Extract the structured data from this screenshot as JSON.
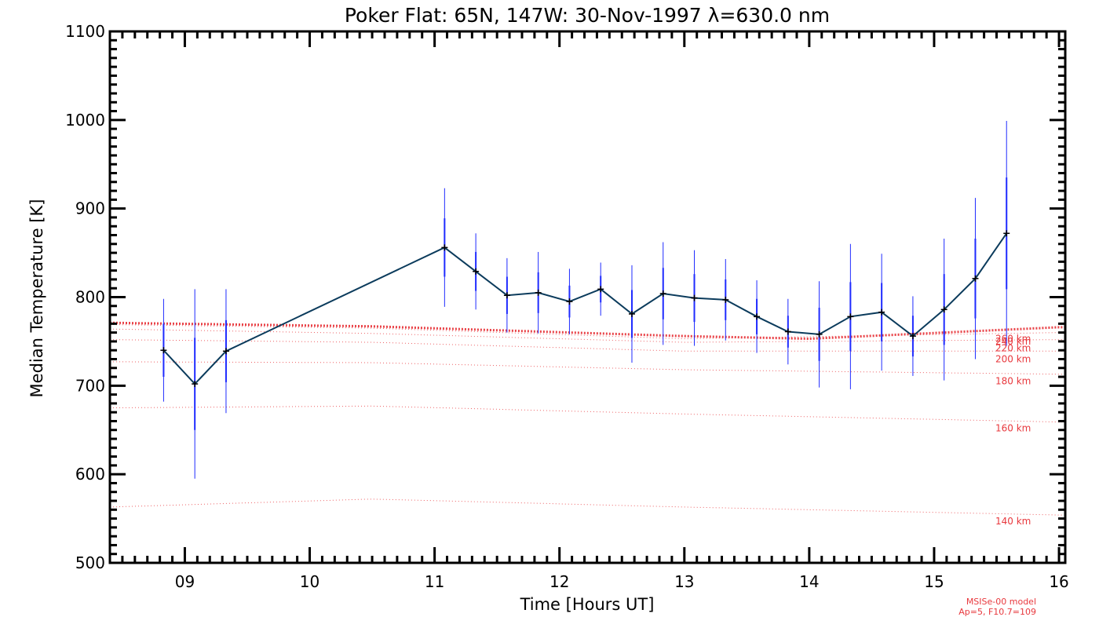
{
  "chart_data": {
    "type": "line",
    "title": "Poker Flat: 65N, 147W: 30-Nov-1997 λ=630.0 nm",
    "xlabel": "Time [Hours UT]",
    "ylabel": "Median Temperature [K]",
    "xlim": [
      8.4,
      16.05
    ],
    "ylim": [
      500,
      1100
    ],
    "xticks": [
      9,
      10,
      11,
      12,
      13,
      14,
      15,
      16
    ],
    "xtick_labels": [
      "09",
      "10",
      "11",
      "12",
      "13",
      "14",
      "15",
      "16"
    ],
    "yticks": [
      500,
      600,
      700,
      800,
      900,
      1000,
      1100
    ],
    "ytick_labels": [
      "500",
      "600",
      "700",
      "800",
      "900",
      "1000",
      "1100"
    ],
    "grid": false,
    "series": [
      {
        "color": "#0b3b5c",
        "error_color": "#1f2bff",
        "x": [
          8.83,
          9.08,
          9.33,
          11.08,
          11.33,
          11.58,
          11.83,
          12.08,
          12.33,
          12.58,
          12.83,
          13.08,
          13.33,
          13.58,
          13.83,
          14.08,
          14.33,
          14.58,
          14.83,
          15.08,
          15.33,
          15.58
        ],
        "y": [
          740,
          702,
          739,
          856,
          829,
          802,
          805,
          795,
          809,
          781,
          804,
          799,
          797,
          778,
          761,
          758,
          778,
          783,
          756,
          786,
          821,
          872
        ],
        "err_inner": [
          30,
          52,
          35,
          33,
          22,
          21,
          23,
          18,
          15,
          27,
          29,
          27,
          23,
          20,
          18,
          30,
          39,
          33,
          23,
          40,
          45,
          63
        ],
        "err_outer": [
          58,
          107,
          70,
          67,
          43,
          42,
          46,
          37,
          30,
          55,
          58,
          54,
          46,
          41,
          37,
          60,
          82,
          66,
          45,
          80,
          91,
          127
        ]
      }
    ],
    "model_curves": [
      {
        "label": "140 km",
        "x": [
          8.4,
          10.5,
          13.0,
          16.0
        ],
        "y": [
          563,
          572,
          563,
          554
        ]
      },
      {
        "label": "160 km",
        "x": [
          8.4,
          10.5,
          13.0,
          16.0
        ],
        "y": [
          675,
          677,
          668,
          659
        ]
      },
      {
        "label": "180 km",
        "x": [
          8.4,
          10.5,
          13.0,
          16.0
        ],
        "y": [
          727,
          726,
          718,
          713
        ]
      },
      {
        "label": "200 km",
        "x": [
          8.4,
          10.5,
          13.0,
          16.0
        ],
        "y": [
          752,
          749,
          739,
          739
        ]
      },
      {
        "label": "220 km",
        "x": [
          8.4,
          10.5,
          13.0,
          16.0
        ],
        "y": [
          764,
          759,
          749,
          752
        ]
      },
      {
        "label": "240 km",
        "x": [
          8.4,
          10.5,
          13.0,
          16.0
        ],
        "y": [
          769,
          765,
          753,
          760
        ]
      },
      {
        "label": "260 km",
        "x": [
          8.4,
          10.5,
          13.0,
          14.0,
          16.0
        ],
        "y": [
          771,
          767,
          756,
          753,
          766
        ]
      }
    ],
    "model_labels": [
      "140 km",
      "160 km",
      "180 km",
      "200 km",
      "220 km",
      "240 km",
      "260 km"
    ],
    "model_color": "#e8383d",
    "notes": [
      "MSISe-00 model",
      "Ap=5, F10.7=109"
    ]
  }
}
